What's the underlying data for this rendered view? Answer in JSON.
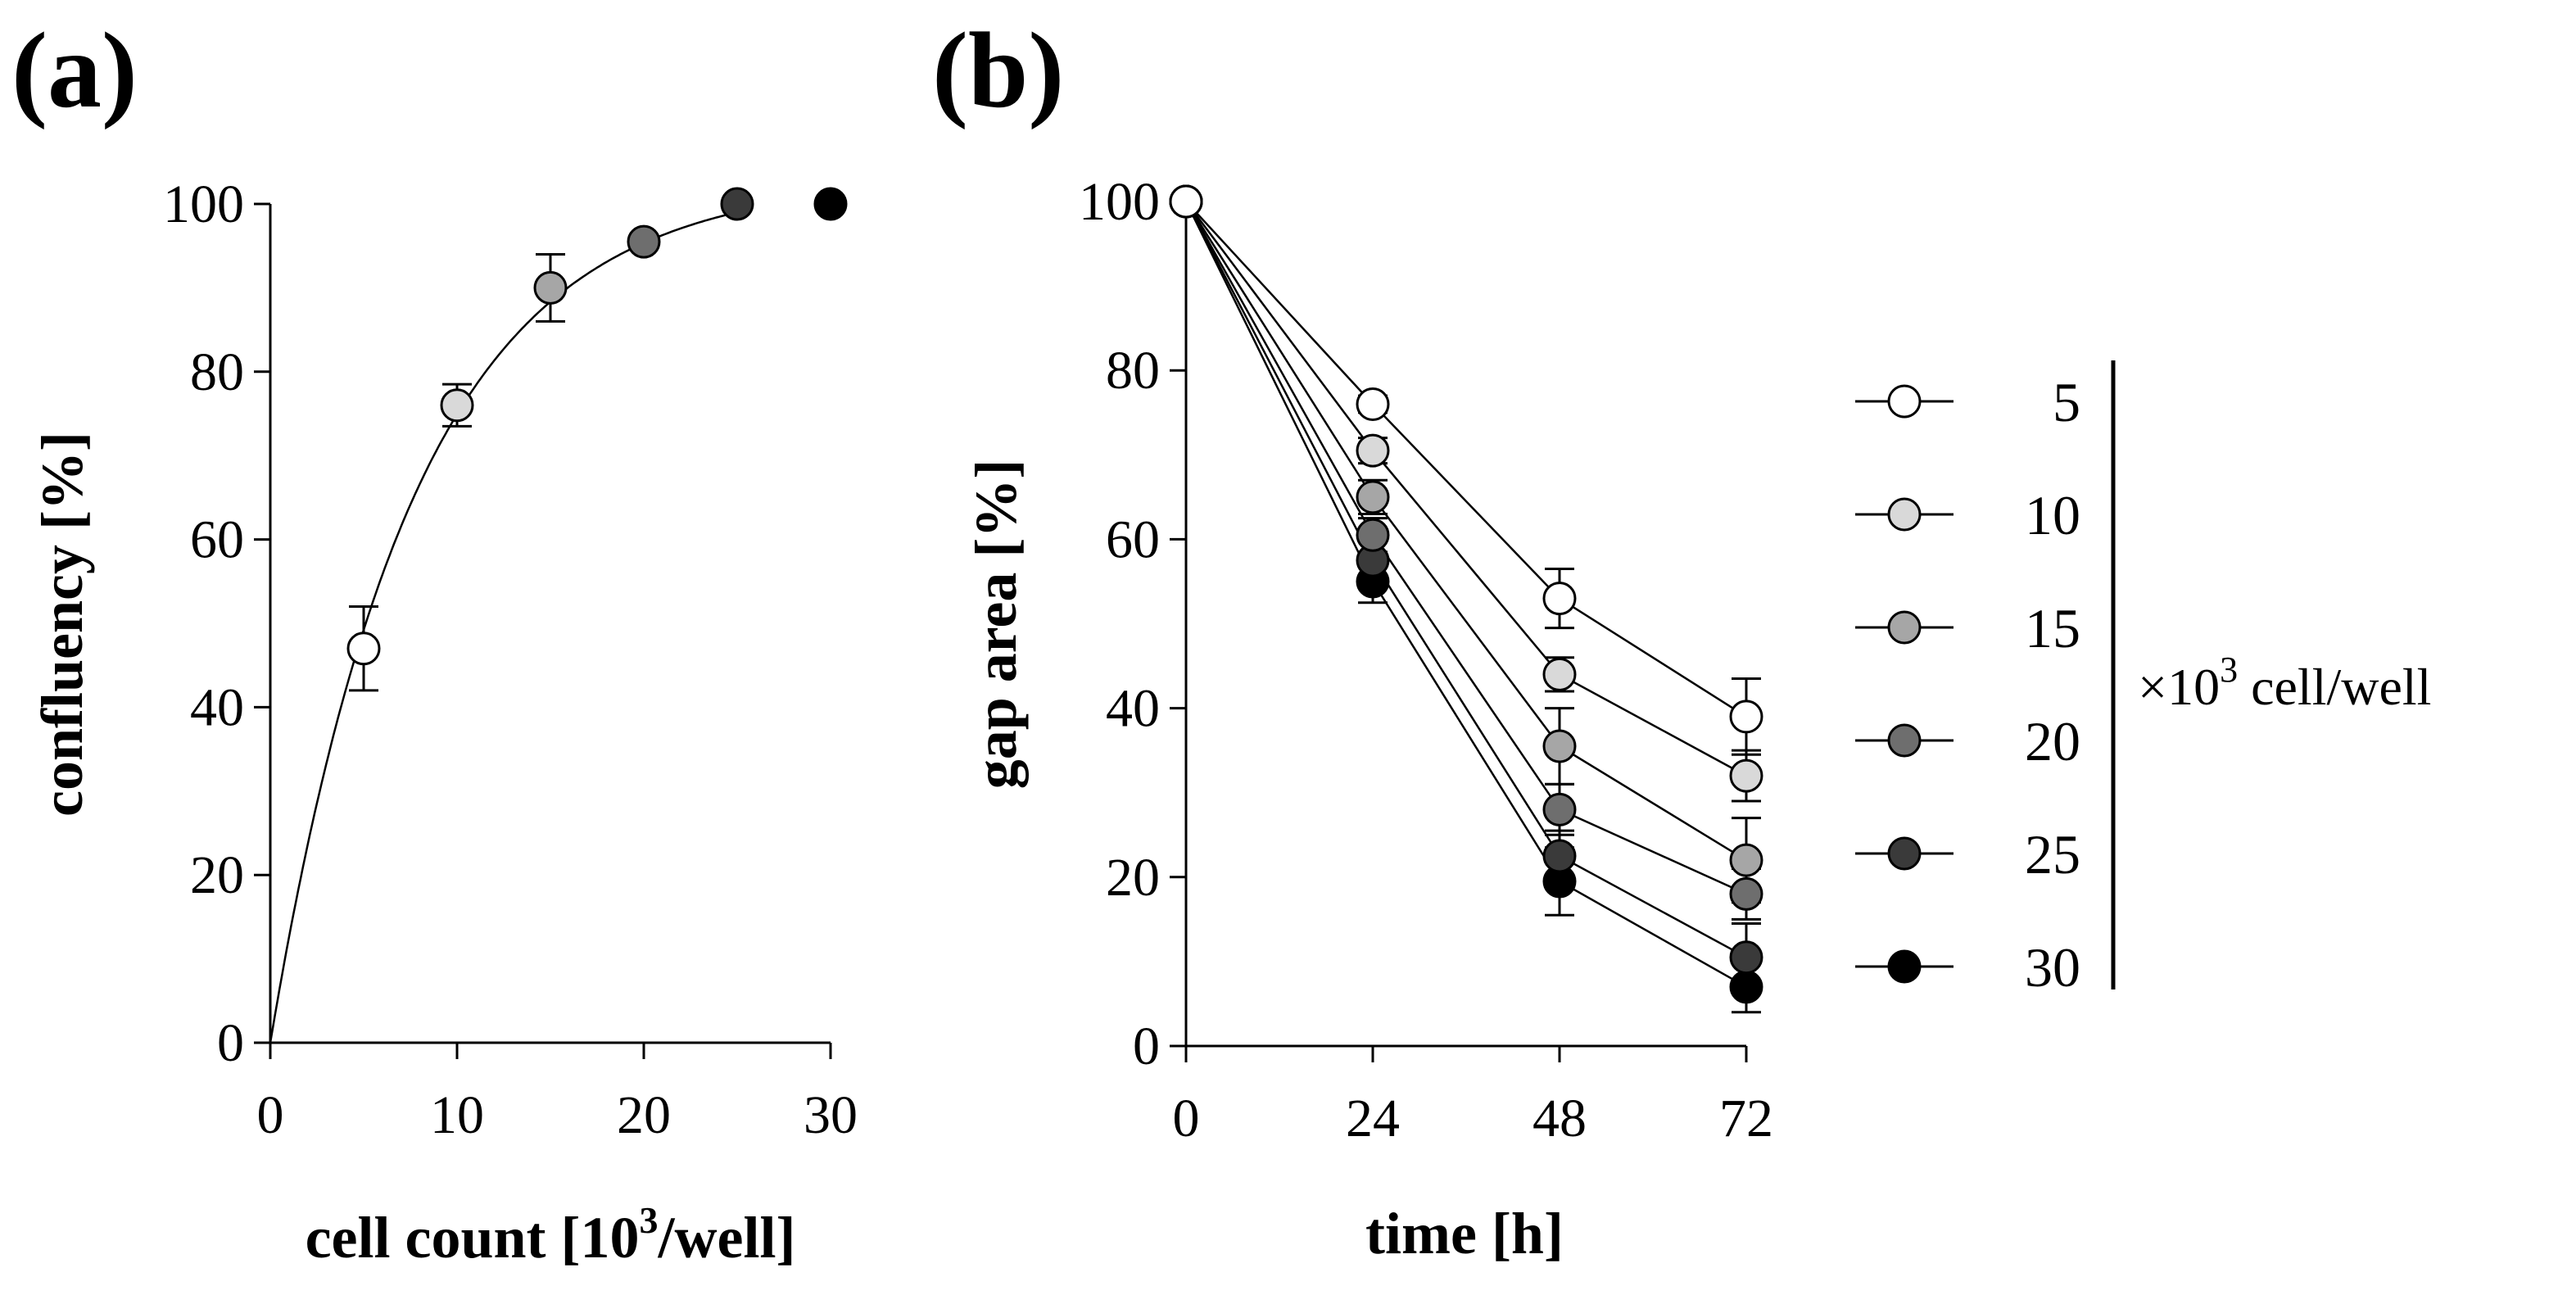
{
  "chart_data": [
    {
      "type": "scatter",
      "panel_label": "(a)",
      "xlabel_main": "cell count [10",
      "xlabel_sup": "3",
      "xlabel_tail": "/well]",
      "ylabel": "confluency [%]",
      "xlim": [
        0,
        30
      ],
      "ylim": [
        0,
        100
      ],
      "x_ticks": [
        "0",
        "10",
        "20",
        "30"
      ],
      "y_ticks": [
        "0",
        "20",
        "40",
        "60",
        "80",
        "100"
      ],
      "fit_curve": "saturating exponential through origin",
      "points": [
        {
          "x": 5,
          "y": 47,
          "err": 5,
          "color": "#ffffff"
        },
        {
          "x": 10,
          "y": 76,
          "err": 2.5,
          "color": "#d9d9d9"
        },
        {
          "x": 15,
          "y": 90,
          "err": 4,
          "color": "#a6a6a6"
        },
        {
          "x": 20,
          "y": 95.5,
          "err": 0,
          "color": "#6e6e6e"
        },
        {
          "x": 25,
          "y": 100,
          "err": 0,
          "color": "#3a3a3a"
        },
        {
          "x": 30,
          "y": 100,
          "err": 0,
          "color": "#000000"
        }
      ]
    },
    {
      "type": "line",
      "panel_label": "(b)",
      "xlabel": "time [h]",
      "ylabel": "gap area [%]",
      "x": [
        0,
        24,
        48,
        72
      ],
      "xlim": [
        0,
        72
      ],
      "ylim": [
        0,
        100
      ],
      "x_ticks": [
        "0",
        "24",
        "48",
        "72"
      ],
      "y_ticks": [
        "0",
        "20",
        "40",
        "60",
        "80",
        "100"
      ],
      "series": [
        {
          "name": "5",
          "color": "#ffffff",
          "values": [
            100,
            76,
            53,
            39
          ],
          "err": [
            0,
            1,
            3.5,
            4.5
          ]
        },
        {
          "name": "10",
          "color": "#d9d9d9",
          "values": [
            100,
            70.5,
            44,
            32
          ],
          "err": [
            0,
            1.5,
            2,
            3
          ]
        },
        {
          "name": "15",
          "color": "#a6a6a6",
          "values": [
            100,
            65,
            35.5,
            22
          ],
          "err": [
            0,
            2,
            4.5,
            5
          ]
        },
        {
          "name": "20",
          "color": "#6e6e6e",
          "values": [
            100,
            60.5,
            28,
            18
          ],
          "err": [
            0,
            2,
            3,
            3
          ]
        },
        {
          "name": "25",
          "color": "#3a3a3a",
          "values": [
            100,
            57.5,
            22.5,
            10.5
          ],
          "err": [
            0,
            2.5,
            3,
            4
          ]
        },
        {
          "name": "30",
          "color": "#000000",
          "values": [
            100,
            55,
            19.5,
            7
          ],
          "err": [
            0,
            2.5,
            4,
            3
          ]
        }
      ],
      "legend_unit_prefix": "×10",
      "legend_unit_sup": "3",
      "legend_unit_suffix": " cell/well",
      "legend_position": "right"
    }
  ]
}
